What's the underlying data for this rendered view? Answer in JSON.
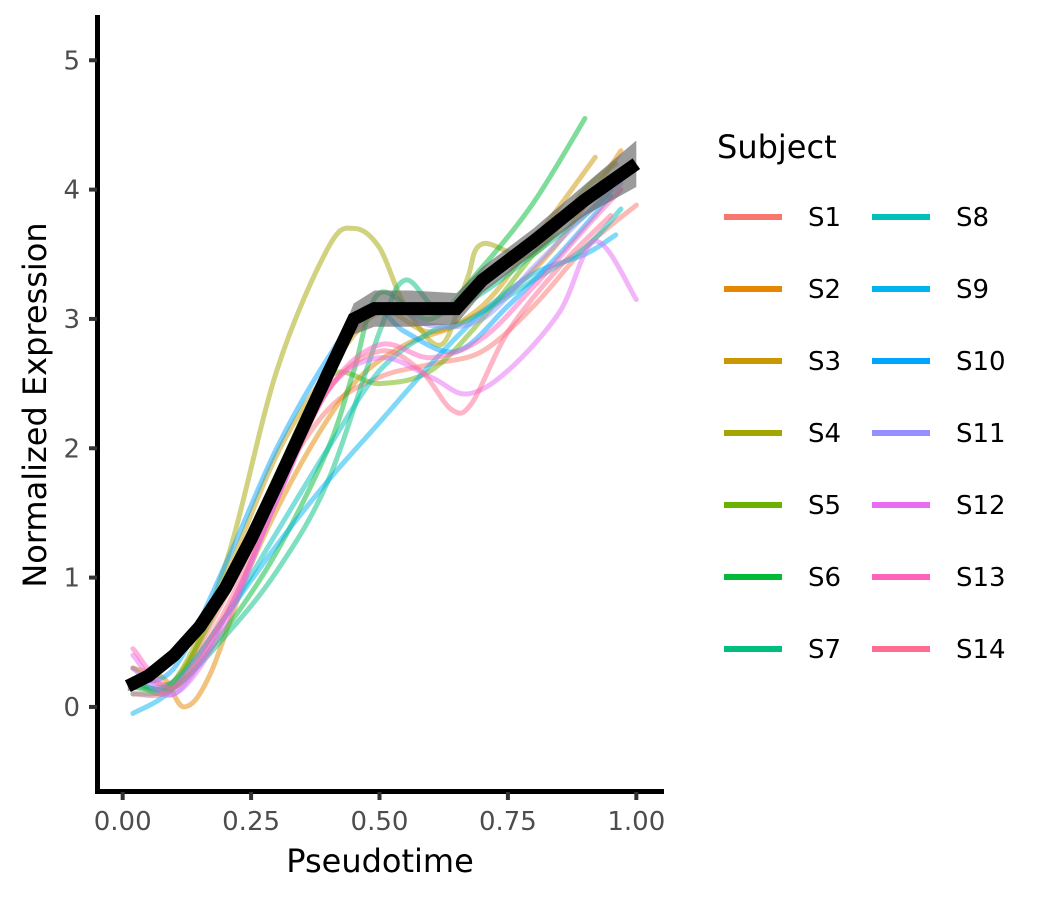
{
  "chart_data": {
    "type": "line",
    "title": "",
    "xlabel": "Pseudotime",
    "ylabel": "Normalized Expression",
    "xlim": [
      -0.05,
      1.05
    ],
    "ylim": [
      -0.65,
      5.35
    ],
    "x_ticks": [
      0.0,
      0.25,
      0.5,
      0.75,
      1.0
    ],
    "x_tick_labels": [
      "0.00",
      "0.25",
      "0.50",
      "0.75",
      "1.00"
    ],
    "y_ticks": [
      0,
      1,
      2,
      3,
      4,
      5
    ],
    "y_tick_labels": [
      "0",
      "1",
      "2",
      "3",
      "4",
      "5"
    ],
    "grid": false,
    "legend": {
      "title": "Subject",
      "placement": "right",
      "columns": 2
    },
    "series": [
      {
        "name": "S1",
        "color": "#F8766D",
        "x": [
          0.02,
          0.1,
          0.2,
          0.3,
          0.4,
          0.5,
          0.6,
          0.7,
          0.8,
          0.9,
          1.0
        ],
        "y": [
          0.3,
          0.2,
          0.85,
          1.7,
          2.3,
          2.55,
          2.65,
          2.75,
          3.1,
          3.55,
          3.88
        ]
      },
      {
        "name": "S2",
        "color": "#E58700",
        "x": [
          0.02,
          0.08,
          0.12,
          0.17,
          0.25,
          0.35,
          0.45,
          0.55,
          0.65,
          0.75,
          0.85,
          0.97
        ],
        "y": [
          0.3,
          0.22,
          0.0,
          0.25,
          1.1,
          1.9,
          2.5,
          2.8,
          2.95,
          3.2,
          3.6,
          4.3
        ]
      },
      {
        "name": "S3",
        "color": "#C99800",
        "x": [
          0.02,
          0.1,
          0.2,
          0.3,
          0.4,
          0.5,
          0.6,
          0.7,
          0.8,
          0.92
        ],
        "y": [
          0.2,
          0.15,
          1.0,
          1.95,
          2.6,
          3.05,
          2.9,
          3.1,
          3.6,
          4.25
        ]
      },
      {
        "name": "S4",
        "color": "#A3A500",
        "x": [
          0.02,
          0.1,
          0.2,
          0.3,
          0.4,
          0.45,
          0.5,
          0.55,
          0.62,
          0.67,
          0.7,
          0.8,
          0.9,
          0.96
        ],
        "y": [
          0.2,
          0.2,
          1.1,
          2.6,
          3.55,
          3.7,
          3.55,
          3.1,
          2.8,
          3.3,
          3.58,
          3.5,
          4.0,
          4.2
        ]
      },
      {
        "name": "S5",
        "color": "#6BB100",
        "x": [
          0.02,
          0.1,
          0.2,
          0.3,
          0.4,
          0.5,
          0.6,
          0.7,
          0.8,
          0.9,
          0.97
        ],
        "y": [
          0.15,
          0.2,
          0.9,
          1.8,
          2.55,
          2.5,
          2.6,
          3.0,
          3.5,
          3.95,
          4.15
        ]
      },
      {
        "name": "S6",
        "color": "#00BA38",
        "x": [
          0.02,
          0.1,
          0.2,
          0.3,
          0.4,
          0.45,
          0.5,
          0.6,
          0.7,
          0.8,
          0.9
        ],
        "y": [
          0.2,
          0.15,
          0.6,
          1.2,
          2.0,
          2.6,
          3.2,
          3.0,
          3.4,
          3.9,
          4.55
        ]
      },
      {
        "name": "S7",
        "color": "#00BF7D",
        "x": [
          0.02,
          0.1,
          0.2,
          0.3,
          0.4,
          0.5,
          0.55,
          0.62,
          0.7,
          0.8,
          0.9,
          0.95
        ],
        "y": [
          0.1,
          0.15,
          0.55,
          1.05,
          1.75,
          2.9,
          3.3,
          3.05,
          3.2,
          3.5,
          3.8,
          4.0
        ]
      },
      {
        "name": "S8",
        "color": "#00C0B8",
        "x": [
          0.02,
          0.1,
          0.2,
          0.3,
          0.4,
          0.5,
          0.6,
          0.65,
          0.7,
          0.8,
          0.9,
          0.97
        ],
        "y": [
          0.15,
          0.2,
          0.7,
          1.35,
          2.0,
          2.6,
          2.9,
          2.95,
          3.05,
          3.3,
          3.55,
          3.85
        ]
      },
      {
        "name": "S9",
        "color": "#00B4EF",
        "x": [
          0.02,
          0.1,
          0.2,
          0.3,
          0.4,
          0.5,
          0.6,
          0.7,
          0.8,
          0.9,
          0.96
        ],
        "y": [
          -0.05,
          0.15,
          0.7,
          1.25,
          1.75,
          2.2,
          2.65,
          3.05,
          3.35,
          3.5,
          3.65
        ]
      },
      {
        "name": "S10",
        "color": "#00A5FF",
        "x": [
          0.02,
          0.1,
          0.2,
          0.3,
          0.4,
          0.48,
          0.55,
          0.65,
          0.75,
          0.85,
          0.95
        ],
        "y": [
          0.2,
          0.3,
          1.1,
          2.0,
          2.7,
          3.1,
          2.9,
          2.75,
          3.1,
          3.5,
          3.95
        ]
      },
      {
        "name": "S11",
        "color": "#9590FF",
        "x": [
          0.02,
          0.1,
          0.2,
          0.3,
          0.4,
          0.5,
          0.6,
          0.7,
          0.8,
          0.9,
          0.97
        ],
        "y": [
          0.3,
          0.1,
          0.7,
          1.6,
          2.6,
          3.1,
          2.95,
          3.0,
          3.4,
          3.8,
          4.05
        ]
      },
      {
        "name": "S12",
        "color": "#E76BF3",
        "x": [
          0.02,
          0.1,
          0.2,
          0.3,
          0.4,
          0.5,
          0.6,
          0.67,
          0.75,
          0.85,
          0.92,
          1.0
        ],
        "y": [
          0.4,
          0.1,
          0.65,
          1.6,
          2.45,
          2.7,
          2.55,
          2.42,
          2.6,
          3.05,
          3.6,
          3.15
        ]
      },
      {
        "name": "S13",
        "color": "#FF62BC",
        "x": [
          0.02,
          0.1,
          0.2,
          0.3,
          0.4,
          0.5,
          0.6,
          0.7,
          0.8,
          0.9,
          0.97
        ],
        "y": [
          0.45,
          0.15,
          0.7,
          1.6,
          2.45,
          2.8,
          2.7,
          2.85,
          3.25,
          3.7,
          4.0
        ]
      },
      {
        "name": "S14",
        "color": "#FF6C91",
        "x": [
          0.02,
          0.1,
          0.2,
          0.3,
          0.4,
          0.5,
          0.58,
          0.64,
          0.68,
          0.75,
          0.85,
          0.95
        ],
        "y": [
          0.1,
          0.15,
          0.75,
          1.65,
          2.45,
          2.75,
          2.6,
          2.3,
          2.35,
          2.9,
          3.4,
          3.8
        ]
      }
    ],
    "trend": {
      "color": "#000000",
      "x": [
        0.01,
        0.05,
        0.1,
        0.15,
        0.2,
        0.25,
        0.3,
        0.35,
        0.4,
        0.45,
        0.49,
        0.56,
        0.65,
        0.7,
        0.8,
        0.9,
        1.0
      ],
      "y": [
        0.16,
        0.24,
        0.4,
        0.62,
        0.92,
        1.3,
        1.72,
        2.15,
        2.58,
        3.0,
        3.08,
        3.08,
        3.08,
        3.3,
        3.6,
        3.92,
        4.2
      ],
      "ribbon_lower": [
        0.12,
        0.2,
        0.36,
        0.58,
        0.88,
        1.26,
        1.68,
        2.1,
        2.52,
        2.88,
        2.94,
        2.94,
        2.96,
        3.2,
        3.5,
        3.8,
        4.02
      ],
      "ribbon_upper": [
        0.2,
        0.28,
        0.44,
        0.66,
        0.96,
        1.34,
        1.76,
        2.2,
        2.64,
        3.12,
        3.22,
        3.22,
        3.2,
        3.4,
        3.7,
        4.04,
        4.38
      ]
    }
  }
}
